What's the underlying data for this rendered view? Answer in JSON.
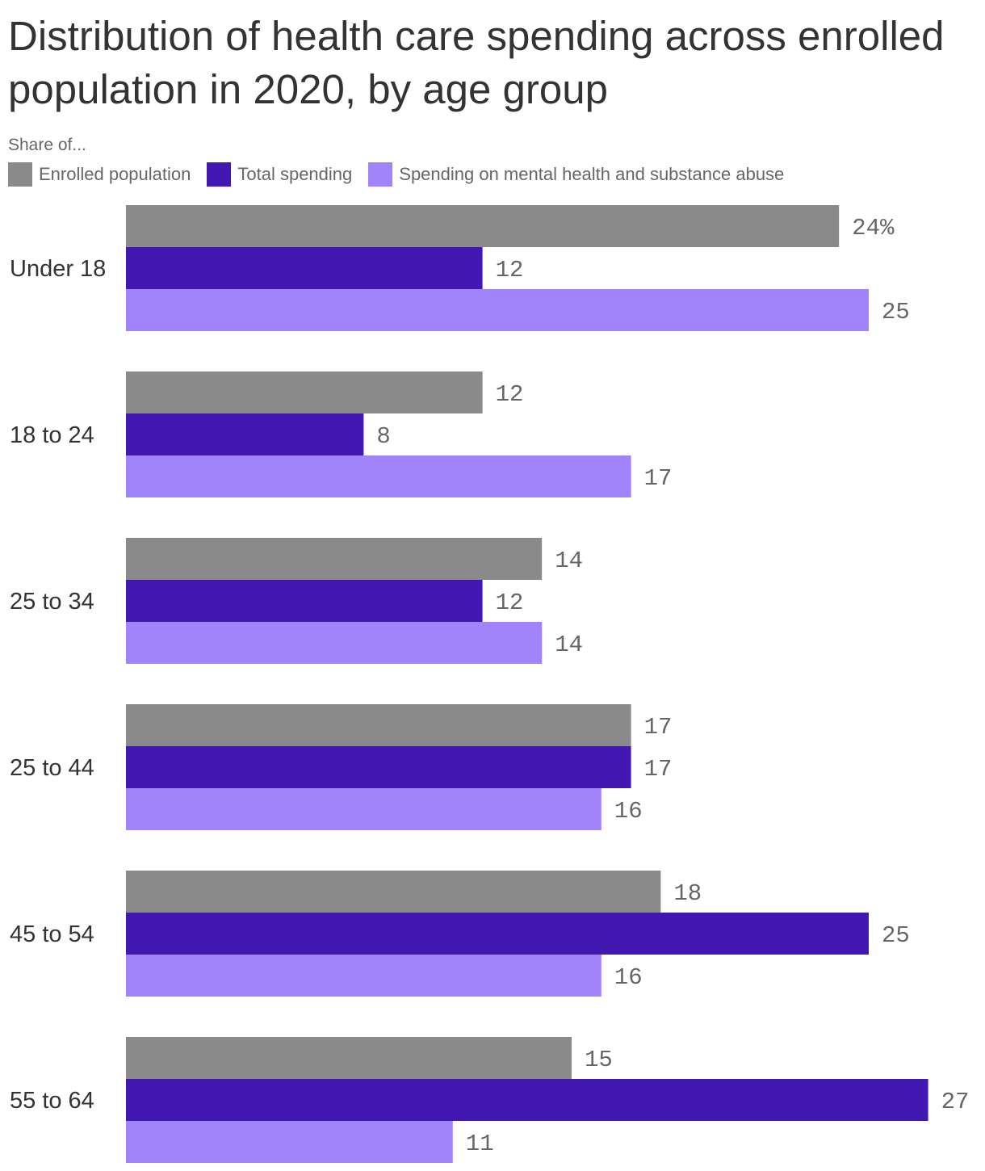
{
  "chart_data": {
    "type": "bar",
    "orientation": "horizontal",
    "title": "Distribution of health care spending across enrolled population in 2020, by age group",
    "subtitle": "Share of...",
    "categories": [
      "Under 18",
      "18 to 24",
      "25 to 34",
      "25 to 44",
      "45 to 54",
      "55 to 64"
    ],
    "series": [
      {
        "name": "Enrolled population",
        "color": "#8a8a8a",
        "values": [
          24,
          12,
          14,
          17,
          18,
          15
        ]
      },
      {
        "name": "Total spending",
        "color": "#4119b2",
        "values": [
          12,
          8,
          12,
          17,
          25,
          27
        ]
      },
      {
        "name": "Spending on mental health and substance abuse",
        "color": "#a183fc",
        "values": [
          25,
          17,
          14,
          16,
          16,
          11
        ]
      }
    ],
    "value_suffix_first": "%",
    "xlim": [
      0,
      27
    ],
    "grid": false,
    "legend_position": "top-left"
  }
}
